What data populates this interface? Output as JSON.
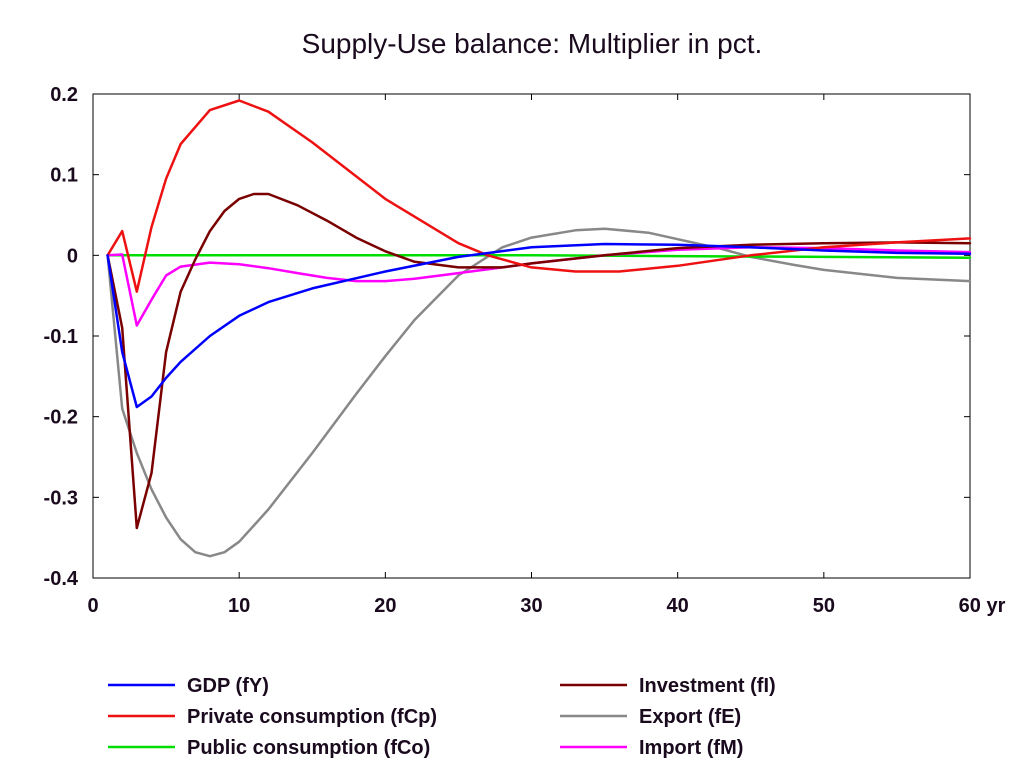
{
  "chart_data": {
    "type": "line",
    "title": "Supply-Use balance: Multiplier in pct.",
    "x_unit_label": "yr",
    "xlim": [
      0,
      60
    ],
    "ylim": [
      -0.4,
      0.2
    ],
    "x_ticks": [
      0,
      10,
      20,
      30,
      40,
      50,
      60
    ],
    "x_tick_labels": [
      "0",
      "10",
      "20",
      "30",
      "40",
      "50",
      "60 yr"
    ],
    "y_ticks": [
      0.2,
      0.1,
      0,
      -0.1,
      -0.2,
      -0.3,
      -0.4
    ],
    "y_tick_labels": [
      "0.2",
      "0.1",
      "0",
      "-0.1",
      "-0.2",
      "-0.3",
      "-0.4"
    ],
    "grid": false,
    "legend_position": "bottom",
    "series": [
      {
        "name": "GDP (fY)",
        "color": "#0000ff",
        "x": [
          1,
          2,
          3,
          4,
          5,
          6,
          8,
          10,
          12,
          15,
          20,
          25,
          30,
          35,
          40,
          45,
          50,
          55,
          60
        ],
        "y": [
          0,
          -0.12,
          -0.188,
          -0.175,
          -0.152,
          -0.132,
          -0.1,
          -0.075,
          -0.058,
          -0.041,
          -0.02,
          -0.002,
          0.01,
          0.014,
          0.013,
          0.01,
          0.006,
          0.003,
          0.002
        ]
      },
      {
        "name": "Private consumption (fCp)",
        "color": "#ee1111",
        "x": [
          1,
          2,
          3,
          4,
          5,
          6,
          8,
          10,
          12,
          15,
          20,
          25,
          27,
          30,
          33,
          36,
          40,
          45,
          50,
          55,
          60
        ],
        "y": [
          0,
          0.03,
          -0.045,
          0.035,
          0.095,
          0.138,
          0.18,
          0.192,
          0.178,
          0.14,
          0.07,
          0.015,
          0.0,
          -0.015,
          -0.02,
          -0.02,
          -0.013,
          0.0,
          0.01,
          0.016,
          0.021
        ]
      },
      {
        "name": "Public consumption (fCo)",
        "color": "#00dd00",
        "x": [
          1,
          10,
          20,
          30,
          40,
          50,
          60
        ],
        "y": [
          0,
          0,
          0,
          0,
          -0.001,
          -0.002,
          -0.003
        ]
      },
      {
        "name": "Investment (fI)",
        "color": "#7a0000",
        "x": [
          1,
          2,
          3,
          4,
          5,
          6,
          7,
          8,
          9,
          10,
          11,
          12,
          14,
          16,
          18,
          20,
          22,
          25,
          28,
          30,
          35,
          40,
          45,
          50,
          55,
          60
        ],
        "y": [
          0,
          -0.09,
          -0.338,
          -0.27,
          -0.12,
          -0.045,
          -0.005,
          0.03,
          0.055,
          0.07,
          0.076,
          0.076,
          0.062,
          0.043,
          0.022,
          0.005,
          -0.008,
          -0.015,
          -0.015,
          -0.01,
          0.0,
          0.009,
          0.013,
          0.015,
          0.016,
          0.015
        ]
      },
      {
        "name": "Export (fE)",
        "color": "#888888",
        "x": [
          1,
          2,
          3,
          4,
          5,
          6,
          7,
          8,
          9,
          10,
          12,
          15,
          18,
          20,
          22,
          25,
          28,
          30,
          33,
          35,
          38,
          40,
          43,
          45,
          48,
          50,
          55,
          60
        ],
        "y": [
          0,
          -0.19,
          -0.245,
          -0.29,
          -0.325,
          -0.352,
          -0.368,
          -0.373,
          -0.368,
          -0.355,
          -0.315,
          -0.245,
          -0.172,
          -0.125,
          -0.08,
          -0.025,
          0.01,
          0.022,
          0.031,
          0.033,
          0.028,
          0.02,
          0.008,
          -0.002,
          -0.012,
          -0.018,
          -0.028,
          -0.032
        ]
      },
      {
        "name": "Import (fM)",
        "color": "#ff00ff",
        "x": [
          1,
          2,
          3,
          4,
          5,
          6,
          8,
          10,
          12,
          14,
          16,
          18,
          20,
          22,
          25,
          28,
          30,
          35,
          40,
          45,
          50,
          55,
          60
        ],
        "y": [
          0,
          0.001,
          -0.087,
          -0.055,
          -0.025,
          -0.014,
          -0.009,
          -0.011,
          -0.016,
          -0.022,
          -0.028,
          -0.032,
          -0.032,
          -0.029,
          -0.022,
          -0.015,
          -0.01,
          0.0,
          0.007,
          0.01,
          0.009,
          0.006,
          0.004
        ]
      }
    ]
  }
}
